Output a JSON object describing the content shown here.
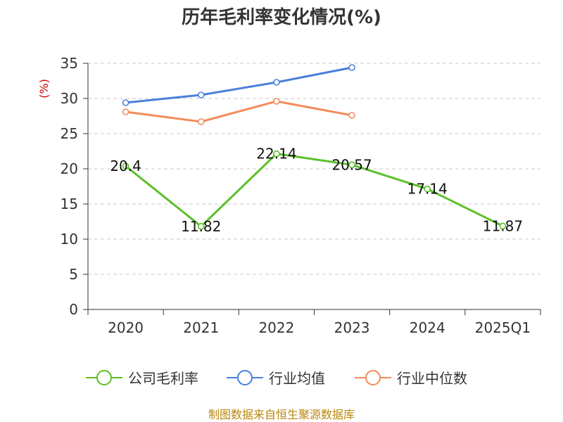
{
  "chart_data": {
    "type": "line",
    "title": "历年毛利率变化情况(%)",
    "ylabel": "(%)",
    "categories": [
      "2020",
      "2021",
      "2022",
      "2023",
      "2024",
      "2025Q1"
    ],
    "y_ticks": [
      "0",
      "5",
      "10",
      "15",
      "20",
      "25",
      "30",
      "35"
    ],
    "ylim": [
      0,
      35
    ],
    "grid": "horizontal-dashed",
    "legend_position": "bottom",
    "series": [
      {
        "name": "公司毛利率",
        "color": "#5cbf2a",
        "values": [
          20.4,
          11.82,
          22.14,
          20.57,
          17.14,
          11.87
        ],
        "labels": [
          "20.4",
          "11.82",
          "22.14",
          "20.57",
          "17.14",
          "11.87"
        ]
      },
      {
        "name": "行业均值",
        "color": "#4a7fdb",
        "values": [
          29.4,
          30.5,
          32.3,
          34.4,
          null,
          null
        ]
      },
      {
        "name": "行业中位数",
        "color": "#f28c5a",
        "values": [
          28.1,
          26.7,
          29.6,
          27.6,
          null,
          null
        ]
      }
    ]
  },
  "footer": {
    "source": "制图数据来自恒生聚源数据库"
  }
}
